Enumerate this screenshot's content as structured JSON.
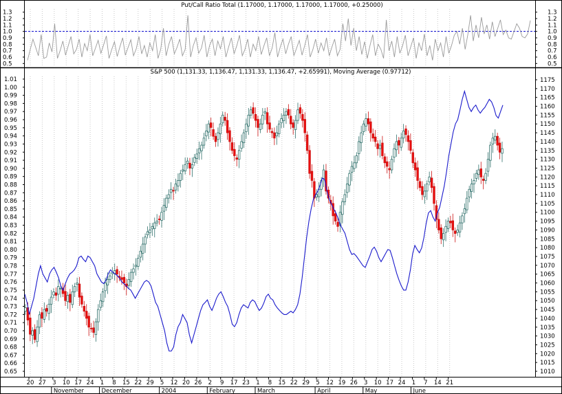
{
  "chart_data": [
    {
      "type": "line",
      "title": "Put/Call Ratio Total (1.17000, 1.17000, 1.17000, 1.17000, +0.25000)",
      "ylim": [
        0.45,
        1.35
      ],
      "yticks": [
        "1.3",
        "1.2",
        "1.1",
        "1.0",
        "0.9",
        "0.8",
        "0.7",
        "0.6",
        "0.5"
      ],
      "reference_line": 1.0,
      "series": [
        {
          "values": [
            0.55,
            0.72,
            0.88,
            0.75,
            0.62,
            0.95,
            0.58,
            0.6,
            0.82,
            0.68,
            1.12,
            0.58,
            0.7,
            0.85,
            0.63,
            0.78,
            0.92,
            0.65,
            0.72,
            0.88,
            0.6,
            0.81,
            0.7,
            0.95,
            0.62,
            0.74,
            0.86,
            0.66,
            0.79,
            0.93,
            0.58,
            0.72,
            0.84,
            0.61,
            0.76,
            0.9,
            0.63,
            0.75,
            0.87,
            0.62,
            0.73,
            0.92,
            0.65,
            0.78,
            0.6,
            0.82,
            0.7,
            0.95,
            0.58,
            0.72,
            1.05,
            0.62,
            0.8,
            0.92,
            0.65,
            0.75,
            0.88,
            0.62,
            0.72,
            1.25,
            0.6,
            0.78,
            0.9,
            0.66,
            0.74,
            0.94,
            0.6,
            0.78,
            0.88,
            0.62,
            0.85,
            0.73,
            0.92,
            0.6,
            0.76,
            0.9,
            0.65,
            0.78,
            0.94,
            0.62,
            0.72,
            0.88,
            0.6,
            0.8,
            0.7,
            0.92,
            0.64,
            0.78,
            0.9,
            0.62,
            0.74,
            0.98,
            0.6,
            0.76,
            0.88,
            0.65,
            0.8,
            0.92,
            0.62,
            0.74,
            0.86,
            0.63,
            0.78,
            0.95,
            0.6,
            0.72,
            0.88,
            0.66,
            0.82,
            0.7,
            0.9,
            0.62,
            0.76,
            0.88,
            0.62,
            0.72,
            1.12,
            0.85,
            1.2,
            0.78,
            1.05,
            0.7,
            0.92,
            0.64,
            0.84,
            0.58,
            0.78,
            0.95,
            0.62,
            0.8,
            0.72,
            0.58,
            1.18,
            0.7,
            0.85,
            0.6,
            0.92,
            0.66,
            0.78,
            0.94,
            0.62,
            0.76,
            0.9,
            0.58,
            0.82,
            0.7,
            0.96,
            0.62,
            0.78,
            0.55,
            0.88,
            0.7,
            0.82,
            0.6,
            0.92,
            0.66,
            0.78,
            0.94,
            1.0,
            0.8,
            1.05,
            0.72,
            0.95,
            1.25,
            0.85,
            1.1,
            0.9,
            1.22,
            0.96,
            1.1,
            0.88,
            1.15,
            0.92,
            1.05,
            1.18,
            0.95,
            1.02,
            0.9,
            0.88,
            1.0,
            1.12,
            1.05,
            0.92,
            0.9,
            0.96,
            1.17
          ]
        }
      ]
    },
    {
      "type": "candlestick",
      "title": "S&P 500 (1,131.33, 1,136.47, 1,131.33, 1,136.47, +2.65991), Moving Average (0.97712)",
      "ylim": [
        1005,
        1178
      ],
      "yticks_right": [
        "1175",
        "1170",
        "1165",
        "1160",
        "1155",
        "1150",
        "1145",
        "1140",
        "1135",
        "1130",
        "1125",
        "1120",
        "1115",
        "1110",
        "1105",
        "1100",
        "1095",
        "1090",
        "1085",
        "1080",
        "1075",
        "1070",
        "1065",
        "1060",
        "1055",
        "1050",
        "1045",
        "1040",
        "1035",
        "1030",
        "1025",
        "1020",
        "1015",
        "1010"
      ],
      "yticks_left": [
        "1.01",
        "1.00",
        "0.99",
        "0.98",
        "0.97",
        "0.96",
        "0.95",
        "0.94",
        "0.93",
        "0.92",
        "0.91",
        "0.90",
        "0.89",
        "0.88",
        "0.87",
        "0.86",
        "0.85",
        "0.84",
        "0.83",
        "0.82",
        "0.81",
        "0.80",
        "0.79",
        "0.78",
        "0.77",
        "0.76",
        "0.75",
        "0.74",
        "0.73",
        "0.72",
        "0.71",
        "0.70",
        "0.69",
        "0.68",
        "0.67",
        "0.66",
        "0.65"
      ],
      "x_tick_labels": [
        "20",
        "27",
        "3",
        "10",
        "17",
        "24",
        "1",
        "8",
        "15",
        "22",
        "29",
        "5",
        "12",
        "20",
        "26",
        "2",
        "9",
        "17",
        "23",
        "1",
        "8",
        "15",
        "22",
        "29",
        "5",
        "12",
        "19",
        "26",
        "3",
        "10",
        "17",
        "24",
        "1",
        "7",
        "14",
        "21"
      ],
      "month_labels": [
        "November",
        "December",
        "2004",
        "February",
        "March",
        "April",
        "May",
        "June"
      ],
      "series": [
        {
          "name": "S&P 500",
          "closes": [
            1046,
            1039,
            1031,
            1033,
            1028,
            1035,
            1042,
            1040,
            1045,
            1044,
            1048,
            1052,
            1055,
            1053,
            1058,
            1057,
            1054,
            1050,
            1053,
            1049,
            1055,
            1058,
            1060,
            1052,
            1048,
            1044,
            1040,
            1035,
            1034,
            1032,
            1038,
            1045,
            1050,
            1055,
            1060,
            1062,
            1064,
            1066,
            1067,
            1065,
            1063,
            1062,
            1060,
            1058,
            1062,
            1066,
            1068,
            1070,
            1074,
            1078,
            1082,
            1086,
            1089,
            1090,
            1092,
            1094,
            1095,
            1096,
            1100,
            1104,
            1108,
            1110,
            1113,
            1112,
            1116,
            1118,
            1122,
            1124,
            1127,
            1129,
            1125,
            1127,
            1131,
            1133,
            1136,
            1138,
            1142,
            1146,
            1150,
            1148,
            1143,
            1140,
            1145,
            1150,
            1155,
            1152,
            1145,
            1140,
            1135,
            1132,
            1130,
            1135,
            1140,
            1145,
            1150,
            1155,
            1158,
            1156,
            1152,
            1148,
            1150,
            1155,
            1157,
            1150,
            1147,
            1145,
            1142,
            1145,
            1150,
            1153,
            1155,
            1157,
            1155,
            1150,
            1148,
            1152,
            1158,
            1156,
            1152,
            1145,
            1135,
            1122,
            1118,
            1108,
            1110,
            1113,
            1118,
            1124,
            1112,
            1108,
            1105,
            1098,
            1095,
            1092,
            1100,
            1106,
            1110,
            1116,
            1122,
            1126,
            1128,
            1132,
            1140,
            1145,
            1150,
            1153,
            1150,
            1145,
            1142,
            1140,
            1136,
            1138,
            1132,
            1128,
            1126,
            1124,
            1130,
            1136,
            1140,
            1138,
            1142,
            1146,
            1144,
            1140,
            1135,
            1128,
            1124,
            1118,
            1114,
            1110,
            1112,
            1116,
            1120,
            1114,
            1105,
            1096,
            1090,
            1085,
            1088,
            1092,
            1095,
            1094,
            1090,
            1088,
            1090,
            1094,
            1098,
            1102,
            1108,
            1113,
            1116,
            1118,
            1122,
            1124,
            1120,
            1118,
            1122,
            1130,
            1138,
            1142,
            1143,
            1138,
            1134,
            1136
          ]
        },
        {
          "name": "Moving Average",
          "axis": "left",
          "values": [
            0.745,
            0.735,
            0.72,
            0.73,
            0.74,
            0.755,
            0.77,
            0.78,
            0.77,
            0.765,
            0.76,
            0.77,
            0.775,
            0.778,
            0.772,
            0.765,
            0.755,
            0.75,
            0.758,
            0.765,
            0.77,
            0.772,
            0.775,
            0.78,
            0.79,
            0.792,
            0.788,
            0.785,
            0.792,
            0.79,
            0.785,
            0.78,
            0.77,
            0.765,
            0.76,
            0.758,
            0.762,
            0.77,
            0.775,
            0.772,
            0.77,
            0.768,
            0.765,
            0.76,
            0.758,
            0.755,
            0.752,
            0.75,
            0.745,
            0.74,
            0.745,
            0.75,
            0.755,
            0.76,
            0.762,
            0.76,
            0.755,
            0.745,
            0.735,
            0.73,
            0.72,
            0.71,
            0.7,
            0.685,
            0.675,
            0.675,
            0.68,
            0.695,
            0.705,
            0.71,
            0.72,
            0.715,
            0.71,
            0.695,
            0.685,
            0.695,
            0.705,
            0.715,
            0.725,
            0.732,
            0.735,
            0.738,
            0.73,
            0.725,
            0.732,
            0.74,
            0.745,
            0.748,
            0.742,
            0.735,
            0.73,
            0.72,
            0.708,
            0.705,
            0.71,
            0.72,
            0.728,
            0.732,
            0.73,
            0.728,
            0.735,
            0.738,
            0.736,
            0.73,
            0.725,
            0.728,
            0.734,
            0.742,
            0.745,
            0.74,
            0.738,
            0.732,
            0.728,
            0.725,
            0.722,
            0.72,
            0.72,
            0.722,
            0.724,
            0.722,
            0.726,
            0.732,
            0.745,
            0.765,
            0.79,
            0.815,
            0.835,
            0.85,
            0.862,
            0.868,
            0.872,
            0.88,
            0.888,
            0.886,
            0.872,
            0.862,
            0.856,
            0.85,
            0.845,
            0.838,
            0.83,
            0.825,
            0.82,
            0.81,
            0.8,
            0.794,
            0.795,
            0.792,
            0.788,
            0.784,
            0.78,
            0.778,
            0.785,
            0.792,
            0.8,
            0.803,
            0.798,
            0.79,
            0.785,
            0.79,
            0.795,
            0.8,
            0.799,
            0.79,
            0.78,
            0.77,
            0.762,
            0.755,
            0.75,
            0.75,
            0.76,
            0.775,
            0.795,
            0.805,
            0.8,
            0.796,
            0.802,
            0.815,
            0.832,
            0.845,
            0.848,
            0.84,
            0.835,
            0.845,
            0.852,
            0.865,
            0.878,
            0.895,
            0.915,
            0.93,
            0.945,
            0.955,
            0.96,
            0.972,
            0.985,
            0.995,
            0.985,
            0.975,
            0.97,
            0.975,
            0.978,
            0.972,
            0.968,
            0.972,
            0.975,
            0.98,
            0.985,
            0.982,
            0.975,
            0.965,
            0.962,
            0.97,
            0.978
          ]
        }
      ]
    }
  ]
}
